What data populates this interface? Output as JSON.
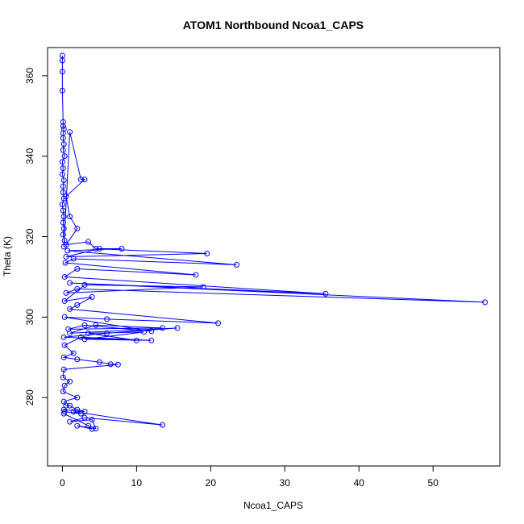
{
  "chart_data": {
    "type": "line",
    "title": "ATOM1 Northbound Ncoa1_CAPS",
    "xlabel": "Ncoa1_CAPS",
    "ylabel": "Theta (K)",
    "xlim": [
      -2,
      59
    ],
    "ylim": [
      263,
      367
    ],
    "xticks": [
      0,
      10,
      20,
      30,
      40,
      50
    ],
    "yticks": [
      280,
      300,
      320,
      340,
      360
    ],
    "grid": false,
    "color": "#0000ff",
    "markers": "open-circle",
    "series": [
      {
        "points": [
          [
            0.0,
            365.0
          ],
          [
            0.0,
            363.8
          ],
          [
            0.0,
            361.0
          ],
          [
            0.0,
            356.3
          ],
          [
            0.1,
            348.5
          ],
          [
            0.1,
            347.5
          ],
          [
            0.2,
            346.8
          ],
          [
            0.1,
            345.7
          ],
          [
            0.1,
            344.5
          ],
          [
            0.2,
            343.0
          ],
          [
            0.1,
            341.5
          ],
          [
            0.3,
            340.0
          ],
          [
            0.0,
            338.6
          ],
          [
            0.1,
            337.0
          ],
          [
            0.0,
            335.5
          ],
          [
            0.2,
            334.0
          ],
          [
            0.1,
            332.5
          ],
          [
            0.1,
            331.0
          ],
          [
            0.2,
            329.5
          ],
          [
            0.0,
            328.0
          ],
          [
            0.1,
            326.5
          ],
          [
            0.2,
            325.0
          ],
          [
            0.1,
            323.5
          ],
          [
            0.2,
            322.0
          ],
          [
            0.1,
            320.5
          ],
          [
            0.3,
            319.0
          ],
          [
            0.2,
            317.5
          ],
          [
            1.0,
            346.0
          ],
          [
            2.5,
            334.2
          ],
          [
            3.0,
            334.2
          ],
          [
            0.5,
            330.0
          ],
          [
            1.0,
            325.0
          ],
          [
            2.0,
            322.0
          ],
          [
            0.5,
            318.0
          ],
          [
            3.5,
            318.7
          ],
          [
            4.5,
            317.0
          ],
          [
            19.5,
            315.8
          ],
          [
            0.5,
            315.0
          ],
          [
            5.0,
            317.0
          ],
          [
            8.0,
            317.0
          ],
          [
            0.7,
            316.5
          ],
          [
            23.5,
            313.0
          ],
          [
            1.5,
            314.5
          ],
          [
            0.4,
            313.5
          ],
          [
            18.0,
            310.5
          ],
          [
            2.0,
            312.0
          ],
          [
            0.3,
            310.0
          ],
          [
            35.5,
            305.8
          ],
          [
            1.0,
            308.5
          ],
          [
            57.0,
            303.7
          ],
          [
            2.0,
            307.0
          ],
          [
            0.5,
            306.0
          ],
          [
            19.0,
            307.5
          ],
          [
            3.0,
            308.0
          ],
          [
            0.3,
            304.0
          ],
          [
            4.0,
            305.0
          ],
          [
            2.0,
            303.0
          ],
          [
            1.0,
            302.0
          ],
          [
            21.0,
            298.5
          ],
          [
            6.0,
            299.5
          ],
          [
            0.3,
            300.0
          ],
          [
            12.0,
            296.5
          ],
          [
            3.0,
            298.0
          ],
          [
            0.8,
            297.0
          ],
          [
            13.5,
            297.3
          ],
          [
            4.5,
            298.0
          ],
          [
            1.0,
            296.0
          ],
          [
            15.5,
            297.3
          ],
          [
            6.0,
            296.0
          ],
          [
            0.2,
            295.0
          ],
          [
            10.0,
            294.2
          ],
          [
            3.5,
            296.0
          ],
          [
            11.0,
            296.3
          ],
          [
            3.0,
            294.5
          ],
          [
            12.0,
            294.2
          ],
          [
            2.5,
            295.0
          ],
          [
            0.3,
            293.0
          ],
          [
            1.5,
            291.0
          ],
          [
            0.2,
            290.0
          ],
          [
            2.0,
            289.5
          ],
          [
            5.0,
            288.8
          ],
          [
            6.5,
            288.3
          ],
          [
            7.5,
            288.2
          ],
          [
            0.2,
            287.0
          ],
          [
            0.1,
            285.0
          ],
          [
            1.0,
            284.0
          ],
          [
            0.3,
            283.0
          ],
          [
            0.1,
            281.5
          ],
          [
            2.0,
            280.0
          ],
          [
            0.2,
            279.0
          ],
          [
            0.5,
            278.0
          ],
          [
            1.0,
            278.0
          ],
          [
            2.0,
            277.0
          ],
          [
            3.0,
            276.5
          ],
          [
            0.2,
            277.0
          ],
          [
            0.3,
            276.5
          ],
          [
            2.5,
            276.0
          ],
          [
            1.5,
            276.5
          ],
          [
            13.5,
            273.2
          ],
          [
            3.0,
            275.0
          ],
          [
            1.0,
            274.0
          ],
          [
            4.0,
            274.5
          ],
          [
            4.5,
            272.3
          ],
          [
            2.0,
            273.0
          ],
          [
            4.0,
            272.2
          ],
          [
            3.5,
            273.0
          ],
          [
            0.2,
            276.0
          ]
        ]
      }
    ]
  }
}
